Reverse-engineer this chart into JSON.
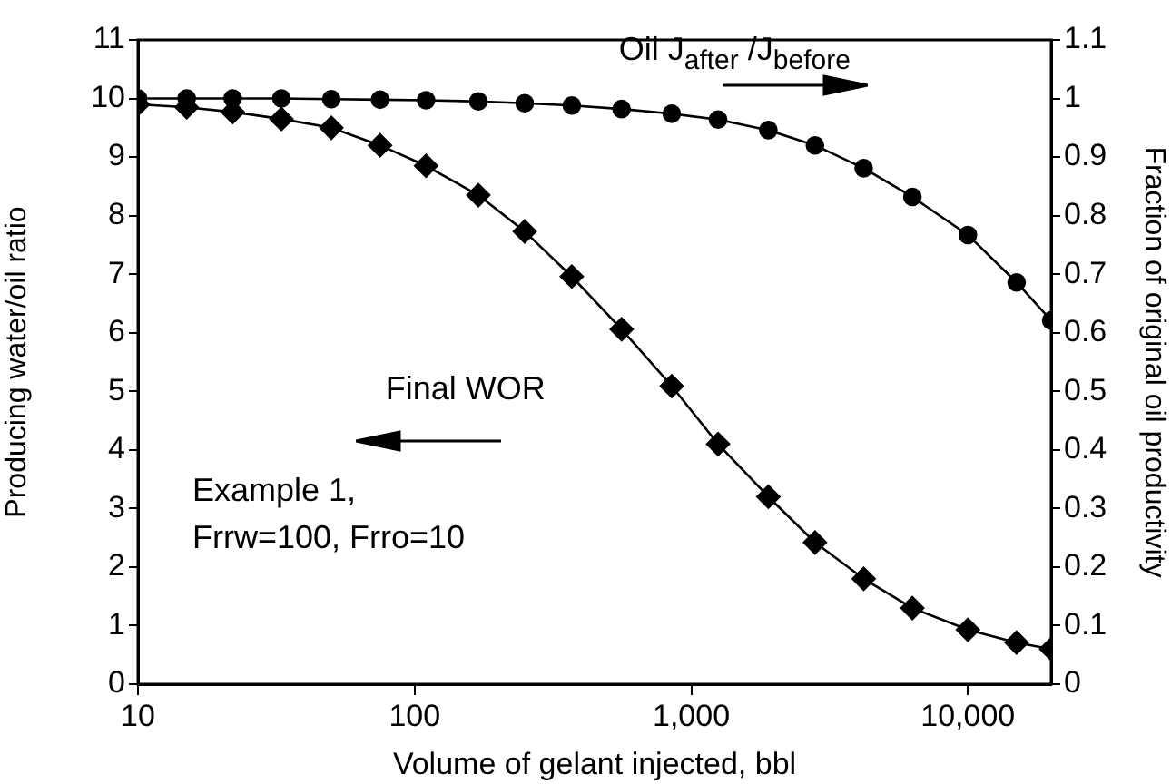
{
  "chart_data": {
    "type": "line",
    "x": [
      10,
      15,
      22,
      33,
      50,
      75,
      110,
      170,
      250,
      370,
      560,
      850,
      1250,
      1900,
      2800,
      4200,
      6300,
      10000,
      15000,
      20000
    ],
    "series": [
      {
        "name": "Final WOR",
        "color": "#000000",
        "marker": "diamond",
        "values": [
          9.9,
          9.85,
          9.77,
          9.65,
          9.5,
          9.2,
          8.85,
          8.35,
          7.73,
          6.96,
          6.06,
          5.09,
          4.1,
          3.2,
          2.42,
          1.8,
          1.3,
          0.93,
          0.71,
          0.6
        ]
      },
      {
        "name": "Oil J$_{after}$ /J$_{before}$",
        "color": "#000000",
        "marker": "circle",
        "axis": "y2",
        "values": [
          1.0,
          1.0,
          1.0,
          1.0,
          0.999,
          0.998,
          0.997,
          0.995,
          0.992,
          0.988,
          0.982,
          0.974,
          0.964,
          0.946,
          0.92,
          0.881,
          0.832,
          0.767,
          0.686,
          0.621
        ]
      }
    ],
    "log": "x",
    "xlim": [
      10,
      20000
    ],
    "xticks": [
      10,
      100,
      {
        "value": 1000,
        "label": "1,000"
      },
      {
        "value": 10000,
        "label": "10,000"
      }
    ],
    "ylim": [
      0,
      11
    ],
    "yticks": [
      0,
      1,
      2,
      3,
      4,
      5,
      6,
      7,
      8,
      9,
      10,
      11
    ],
    "y2lim": [
      0,
      1.1
    ],
    "y2ticks": [
      0,
      0.1,
      0.2,
      0.3,
      0.4,
      0.5,
      0.6,
      0.7,
      0.8,
      0.9,
      1,
      1.1
    ],
    "xlabel": "Volume of gelant injected, bbl",
    "ylabel": "Producing water/oil ratio",
    "y2label": "Fraction of original oil productivity",
    "annotations": [
      "Example 1,\nFrrw=100, Frro=10"
    ],
    "grid": false,
    "legend": false,
    "line_style": "solid"
  }
}
